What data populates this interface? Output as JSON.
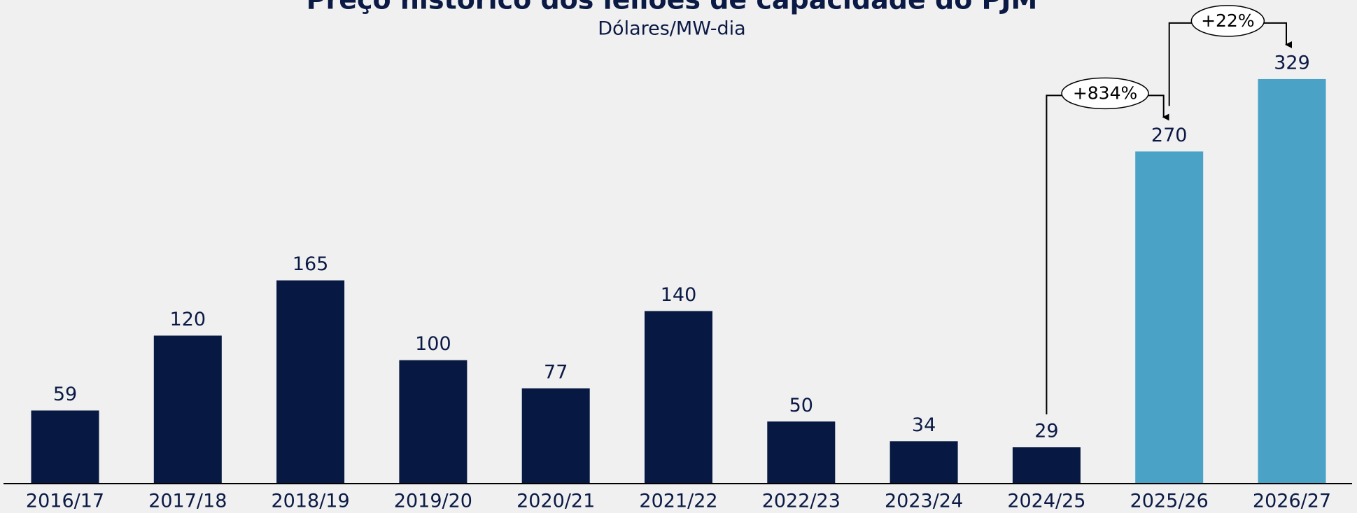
{
  "chart_data": {
    "type": "bar",
    "title": "Preço histórico dos leilões de capacidade do PJM",
    "subtitle": "Dólares/MW-dia",
    "categories": [
      "2016/17",
      "2017/18",
      "2018/19",
      "2019/20",
      "2020/21",
      "2021/22",
      "2022/23",
      "2023/24",
      "2024/25",
      "2025/26",
      "2026/27"
    ],
    "values": [
      59,
      120,
      165,
      100,
      77,
      140,
      50,
      34,
      29,
      270,
      329
    ],
    "colors": [
      "#071942",
      "#071942",
      "#071942",
      "#071942",
      "#071942",
      "#071942",
      "#071942",
      "#071942",
      "#071942",
      "#4aa3c7",
      "#4aa3c7"
    ],
    "annotations": [
      {
        "label": "+834%",
        "from": "2024/25",
        "to": "2025/26"
      },
      {
        "label": "+22%",
        "from": "2025/26",
        "to": "2026/27"
      }
    ]
  }
}
